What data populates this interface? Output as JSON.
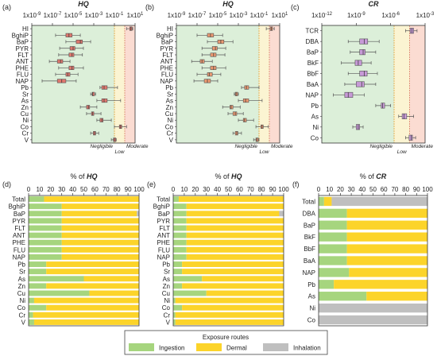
{
  "colors": {
    "negligible": "#dcefd9",
    "low": "#fbf4d2",
    "moderate": "#fbdcd2",
    "hq_box": "#e0786e",
    "hq_box_b": "#ec9a72",
    "cr_box": "#c79ad7",
    "ingestion": "#a6d57e",
    "dermal": "#fcd42a",
    "inhalation": "#bfbfbf",
    "line": "#555555",
    "threshold": "#e0a33c"
  },
  "panels_box": [
    {
      "label": "(a)",
      "title": "HQ"
    },
    {
      "label": "(b)",
      "title": "HQ"
    },
    {
      "label": "(c)",
      "title": "CR"
    }
  ],
  "panels_bar": [
    {
      "label": "(d)",
      "title_prefix": "% of",
      "title_var": "HQ"
    },
    {
      "label": "(e)",
      "title_prefix": "% of",
      "title_var": "HQ"
    },
    {
      "label": "(f)",
      "title_prefix": "% of",
      "title_var": "CR"
    }
  ],
  "zones": {
    "negligible": "Negligible",
    "low": "Low",
    "moderate": "Moderate"
  },
  "legend": {
    "title": "Exposure routes",
    "ingestion": "Ingestion",
    "dermal": "Dermal",
    "inhalation": "Inhalation"
  },
  "chart_data": [
    {
      "panel": "a",
      "type": "box",
      "xscale": "log",
      "xlim": [
        "1x10^-9",
        "1x10^1"
      ],
      "xticks": [
        "1x10^-9",
        "1x10^-7",
        "1x10^-5",
        "1x10^-3",
        "1x10^-1",
        "1x10^1"
      ],
      "categories": [
        "HI",
        "BghiP",
        "BaP",
        "PYR",
        "FLT",
        "ANT",
        "PHE",
        "FLU",
        "NAP",
        "Pb",
        "Sr",
        "As",
        "Zn",
        "Cu",
        "Ni",
        "Co",
        "Cr",
        "V"
      ],
      "series": [
        {
          "category": "HI",
          "min": 1.5,
          "q1": 3,
          "median": 4,
          "q3": 5,
          "max": 6
        },
        {
          "category": "BghiP",
          "min": 2e-07,
          "q1": 2e-06,
          "median": 4e-06,
          "q3": 8e-06,
          "max": 5e-05
        },
        {
          "category": "BaP",
          "min": 2e-06,
          "q1": 2e-05,
          "median": 5e-05,
          "q3": 8e-05,
          "max": 0.0005
        },
        {
          "category": "PYR",
          "min": 5e-07,
          "q1": 5e-06,
          "median": 1e-05,
          "q3": 1.5e-05,
          "max": 0.0001
        },
        {
          "category": "FLT",
          "min": 4e-07,
          "q1": 4e-06,
          "median": 8e-06,
          "q3": 1.2e-05,
          "max": 8e-05
        },
        {
          "category": "ANT",
          "min": 5e-08,
          "q1": 3e-07,
          "median": 6e-07,
          "q3": 1e-06,
          "max": 5e-06
        },
        {
          "category": "PHE",
          "min": 4e-07,
          "q1": 4e-06,
          "median": 8e-06,
          "q3": 1.2e-05,
          "max": 0.0001
        },
        {
          "category": "FLU",
          "min": 2e-07,
          "q1": 2e-06,
          "median": 3e-06,
          "q3": 5e-06,
          "max": 3e-05
        },
        {
          "category": "NAP",
          "min": 1e-08,
          "q1": 3e-07,
          "median": 8e-07,
          "q3": 2e-06,
          "max": 2e-05
        },
        {
          "category": "Pb",
          "min": 0.004,
          "q1": 0.006,
          "median": 0.01,
          "q3": 0.02,
          "max": 0.2
        },
        {
          "category": "Sr",
          "min": 0.0005,
          "q1": 0.0007,
          "median": 0.0008,
          "q3": 0.0009,
          "max": 0.0015
        },
        {
          "category": "As",
          "min": 0.002,
          "q1": 0.006,
          "median": 0.01,
          "q3": 0.02,
          "max": 0.4
        },
        {
          "category": "Zn",
          "min": 5e-05,
          "q1": 0.0002,
          "median": 0.0003,
          "q3": 0.0004,
          "max": 0.002
        },
        {
          "category": "Cu",
          "min": 0.0002,
          "q1": 0.0006,
          "median": 0.0008,
          "q3": 0.001,
          "max": 0.005
        },
        {
          "category": "Ni",
          "min": 0.002,
          "q1": 0.004,
          "median": 0.006,
          "q3": 0.008,
          "max": 0.05
        },
        {
          "category": "Co",
          "min": 0.1,
          "q1": 0.3,
          "median": 0.4,
          "q3": 0.5,
          "max": 1.5
        },
        {
          "category": "Cr",
          "min": 0.0005,
          "q1": 0.0009,
          "median": 0.0012,
          "q3": 0.0015,
          "max": 0.003
        },
        {
          "category": "V",
          "min": 0.05,
          "q1": 0.08,
          "median": 0.1,
          "q3": 0.12,
          "max": 0.15
        }
      ]
    },
    {
      "panel": "b",
      "type": "box",
      "xscale": "log",
      "xlim": [
        "1x10^-9",
        "1x10^1"
      ],
      "xticks": [
        "1x10^-9",
        "1x10^-7",
        "1x10^-5",
        "1x10^-3",
        "1x10^-1",
        "1x10^1"
      ],
      "categories": [
        "HI",
        "BghiP",
        "BaP",
        "PYR",
        "FLT",
        "ANT",
        "PHE",
        "FLU",
        "NAP",
        "Pb",
        "Sr",
        "As",
        "Zn",
        "Cu",
        "Ni",
        "Co",
        "Cr",
        "V"
      ],
      "series": [
        {
          "category": "HI",
          "min": 0.5,
          "q1": 1.2,
          "median": 1.6,
          "q3": 2,
          "max": 3
        },
        {
          "category": "BghiP",
          "min": 1e-07,
          "q1": 1e-06,
          "median": 2e-06,
          "q3": 4e-06,
          "max": 3e-05
        },
        {
          "category": "BaP",
          "min": 1e-06,
          "q1": 1e-05,
          "median": 2e-05,
          "q3": 4e-05,
          "max": 0.0003
        },
        {
          "category": "PYR",
          "min": 3e-07,
          "q1": 3e-06,
          "median": 6e-06,
          "q3": 9e-06,
          "max": 6e-05
        },
        {
          "category": "FLT",
          "min": 3e-07,
          "q1": 2e-06,
          "median": 4e-06,
          "q3": 7e-06,
          "max": 5e-05
        },
        {
          "category": "ANT",
          "min": 3e-08,
          "q1": 2e-07,
          "median": 3e-07,
          "q3": 5e-07,
          "max": 3e-06
        },
        {
          "category": "PHE",
          "min": 3e-07,
          "q1": 2e-06,
          "median": 4e-06,
          "q3": 7e-06,
          "max": 6e-05
        },
        {
          "category": "FLU",
          "min": 1e-07,
          "q1": 1e-06,
          "median": 1.5e-06,
          "q3": 3e-06,
          "max": 2e-05
        },
        {
          "category": "NAP",
          "min": 5e-08,
          "q1": 5e-07,
          "median": 1e-06,
          "q3": 2e-06,
          "max": 1e-05
        },
        {
          "category": "Pb",
          "min": 0.002,
          "q1": 0.004,
          "median": 0.006,
          "q3": 0.01,
          "max": 0.1
        },
        {
          "category": "Sr",
          "min": 0.0004,
          "q1": 0.0005,
          "median": 0.0006,
          "q3": 0.0007,
          "max": 0.001
        },
        {
          "category": "As",
          "min": 0.001,
          "q1": 0.003,
          "median": 0.005,
          "q3": 0.01,
          "max": 0.2
        },
        {
          "category": "Zn",
          "min": 3e-05,
          "q1": 0.00015,
          "median": 0.0002,
          "q3": 0.0003,
          "max": 0.0015
        },
        {
          "category": "Cu",
          "min": 0.0001,
          "q1": 0.0003,
          "median": 0.0005,
          "q3": 0.0007,
          "max": 0.003
        },
        {
          "category": "Ni",
          "min": 0.001,
          "q1": 0.003,
          "median": 0.004,
          "q3": 0.006,
          "max": 0.03
        },
        {
          "category": "Co",
          "min": 0.05,
          "q1": 0.15,
          "median": 0.2,
          "q3": 0.25,
          "max": 0.8
        },
        {
          "category": "Cr",
          "min": 0.0003,
          "q1": 0.0005,
          "median": 0.0007,
          "q3": 0.0009,
          "max": 0.002
        },
        {
          "category": "V",
          "min": 0.03,
          "q1": 0.05,
          "median": 0.06,
          "q3": 0.08,
          "max": 0.1
        }
      ]
    },
    {
      "panel": "c",
      "type": "box",
      "xscale": "log",
      "xlim": [
        "1x10^-12",
        "1x10^-3"
      ],
      "xticks": [
        "1x10^-12",
        "1x10^-9",
        "1x10^-6",
        "1x10^-3"
      ],
      "categories": [
        "TCR",
        "DBA",
        "BaP",
        "BkF",
        "BbF",
        "BaA",
        "NAP",
        "Pb",
        "As",
        "Ni",
        "Co"
      ],
      "series": [
        {
          "category": "TCR",
          "min": 2e-05,
          "q1": 5e-05,
          "median": 7e-05,
          "q3": 0.0001,
          "max": 0.0002
        },
        {
          "category": "DBA",
          "min": 2e-10,
          "q1": 2e-09,
          "median": 5e-09,
          "q3": 1e-08,
          "max": 1e-07
        },
        {
          "category": "BaP",
          "min": 3e-10,
          "q1": 2e-09,
          "median": 4e-09,
          "q3": 6e-09,
          "max": 5e-08
        },
        {
          "category": "BkF",
          "min": 5e-11,
          "q1": 8e-10,
          "median": 1.5e-09,
          "q3": 3e-09,
          "max": 2e-08
        },
        {
          "category": "BbF",
          "min": 2e-10,
          "q1": 2e-09,
          "median": 5e-09,
          "q3": 9e-09,
          "max": 7e-08
        },
        {
          "category": "BaA",
          "min": 1e-10,
          "q1": 1e-09,
          "median": 3e-09,
          "q3": 5e-09,
          "max": 5e-08
        },
        {
          "category": "NAP",
          "min": 1e-11,
          "q1": 1e-10,
          "median": 2e-10,
          "q3": 5e-10,
          "max": 5e-09
        },
        {
          "category": "Pb",
          "min": 5e-08,
          "q1": 1.5e-07,
          "median": 2e-07,
          "q3": 3e-07,
          "max": 1e-06
        },
        {
          "category": "As",
          "min": 5e-06,
          "q1": 1e-05,
          "median": 1.5e-05,
          "q3": 2.5e-05,
          "max": 0.0001
        },
        {
          "category": "Ni",
          "min": 5e-10,
          "q1": 1e-09,
          "median": 1.5e-09,
          "q3": 2e-09,
          "max": 4e-09
        },
        {
          "category": "Co",
          "min": 2e-05,
          "q1": 4e-05,
          "median": 6e-05,
          "q3": 8e-05,
          "max": 0.00015
        }
      ]
    },
    {
      "panel": "d",
      "type": "bar",
      "orientation": "horizontal",
      "stacked": true,
      "xlim": [
        0,
        100
      ],
      "xticks": [
        0,
        10,
        20,
        30,
        40,
        50,
        60,
        70,
        80,
        90,
        100
      ],
      "categories": [
        "Total",
        "BghiP",
        "BaP",
        "PYR",
        "FLT",
        "ANT",
        "PHE",
        "FLU",
        "NAP",
        "Pb",
        "Sr",
        "As",
        "Zn",
        "Cu",
        "Ni",
        "Co",
        "Cr",
        "V"
      ],
      "series": [
        {
          "name": "Ingestion",
          "values": [
            14,
            30,
            30,
            30,
            30,
            30,
            30,
            30,
            30,
            16,
            16,
            50,
            16,
            55,
            5,
            16,
            4,
            5
          ]
        },
        {
          "name": "Dermal",
          "values": [
            86,
            70,
            68,
            70,
            70,
            70,
            70,
            70,
            70,
            84,
            84,
            50,
            84,
            45,
            95,
            84,
            96,
            95
          ]
        },
        {
          "name": "Inhalation",
          "values": [
            0,
            0,
            2,
            0,
            0,
            0,
            0,
            0,
            0,
            0,
            0,
            0,
            0,
            0,
            0,
            0,
            0,
            0
          ]
        }
      ]
    },
    {
      "panel": "e",
      "type": "bar",
      "orientation": "horizontal",
      "stacked": true,
      "xlim": [
        0,
        100
      ],
      "xticks": [
        0,
        10,
        20,
        30,
        40,
        50,
        60,
        70,
        80,
        90,
        100
      ],
      "categories": [
        "Total",
        "BghiP",
        "BaP",
        "PYR",
        "FLT",
        "ANT",
        "PHE",
        "FLU",
        "NAP",
        "Pb",
        "Sr",
        "As",
        "Zn",
        "Cu",
        "Ni",
        "Co",
        "Cr",
        "V"
      ],
      "series": [
        {
          "name": "Ingestion",
          "values": [
            5,
            12,
            12,
            12,
            12,
            12,
            12,
            12,
            12,
            8,
            8,
            26,
            8,
            30,
            2,
            8,
            2,
            2
          ]
        },
        {
          "name": "Dermal",
          "values": [
            95,
            88,
            84,
            88,
            88,
            88,
            88,
            88,
            88,
            92,
            92,
            74,
            92,
            70,
            98,
            92,
            98,
            98
          ]
        },
        {
          "name": "Inhalation",
          "values": [
            0,
            0,
            4,
            0,
            0,
            0,
            0,
            0,
            0,
            0,
            0,
            0,
            0,
            0,
            0,
            0,
            0,
            0
          ]
        }
      ]
    },
    {
      "panel": "f",
      "type": "bar",
      "orientation": "horizontal",
      "stacked": true,
      "xlim": [
        0,
        100
      ],
      "xticks": [
        0,
        10,
        20,
        30,
        40,
        50,
        60,
        70,
        80,
        90,
        100
      ],
      "categories": [
        "Total",
        "DBA",
        "BaP",
        "BkF",
        "BbF",
        "BaA",
        "NAP",
        "Pb",
        "As",
        "Ni",
        "Co"
      ],
      "series": [
        {
          "name": "Ingestion",
          "values": [
            5,
            26,
            26,
            26,
            26,
            26,
            28,
            14,
            44,
            0,
            0
          ]
        },
        {
          "name": "Dermal",
          "values": [
            7,
            74,
            74,
            74,
            74,
            74,
            72,
            86,
            56,
            0,
            0
          ]
        },
        {
          "name": "Inhalation",
          "values": [
            88,
            0,
            0,
            0,
            0,
            0,
            0,
            0,
            0,
            100,
            100
          ]
        }
      ]
    }
  ]
}
